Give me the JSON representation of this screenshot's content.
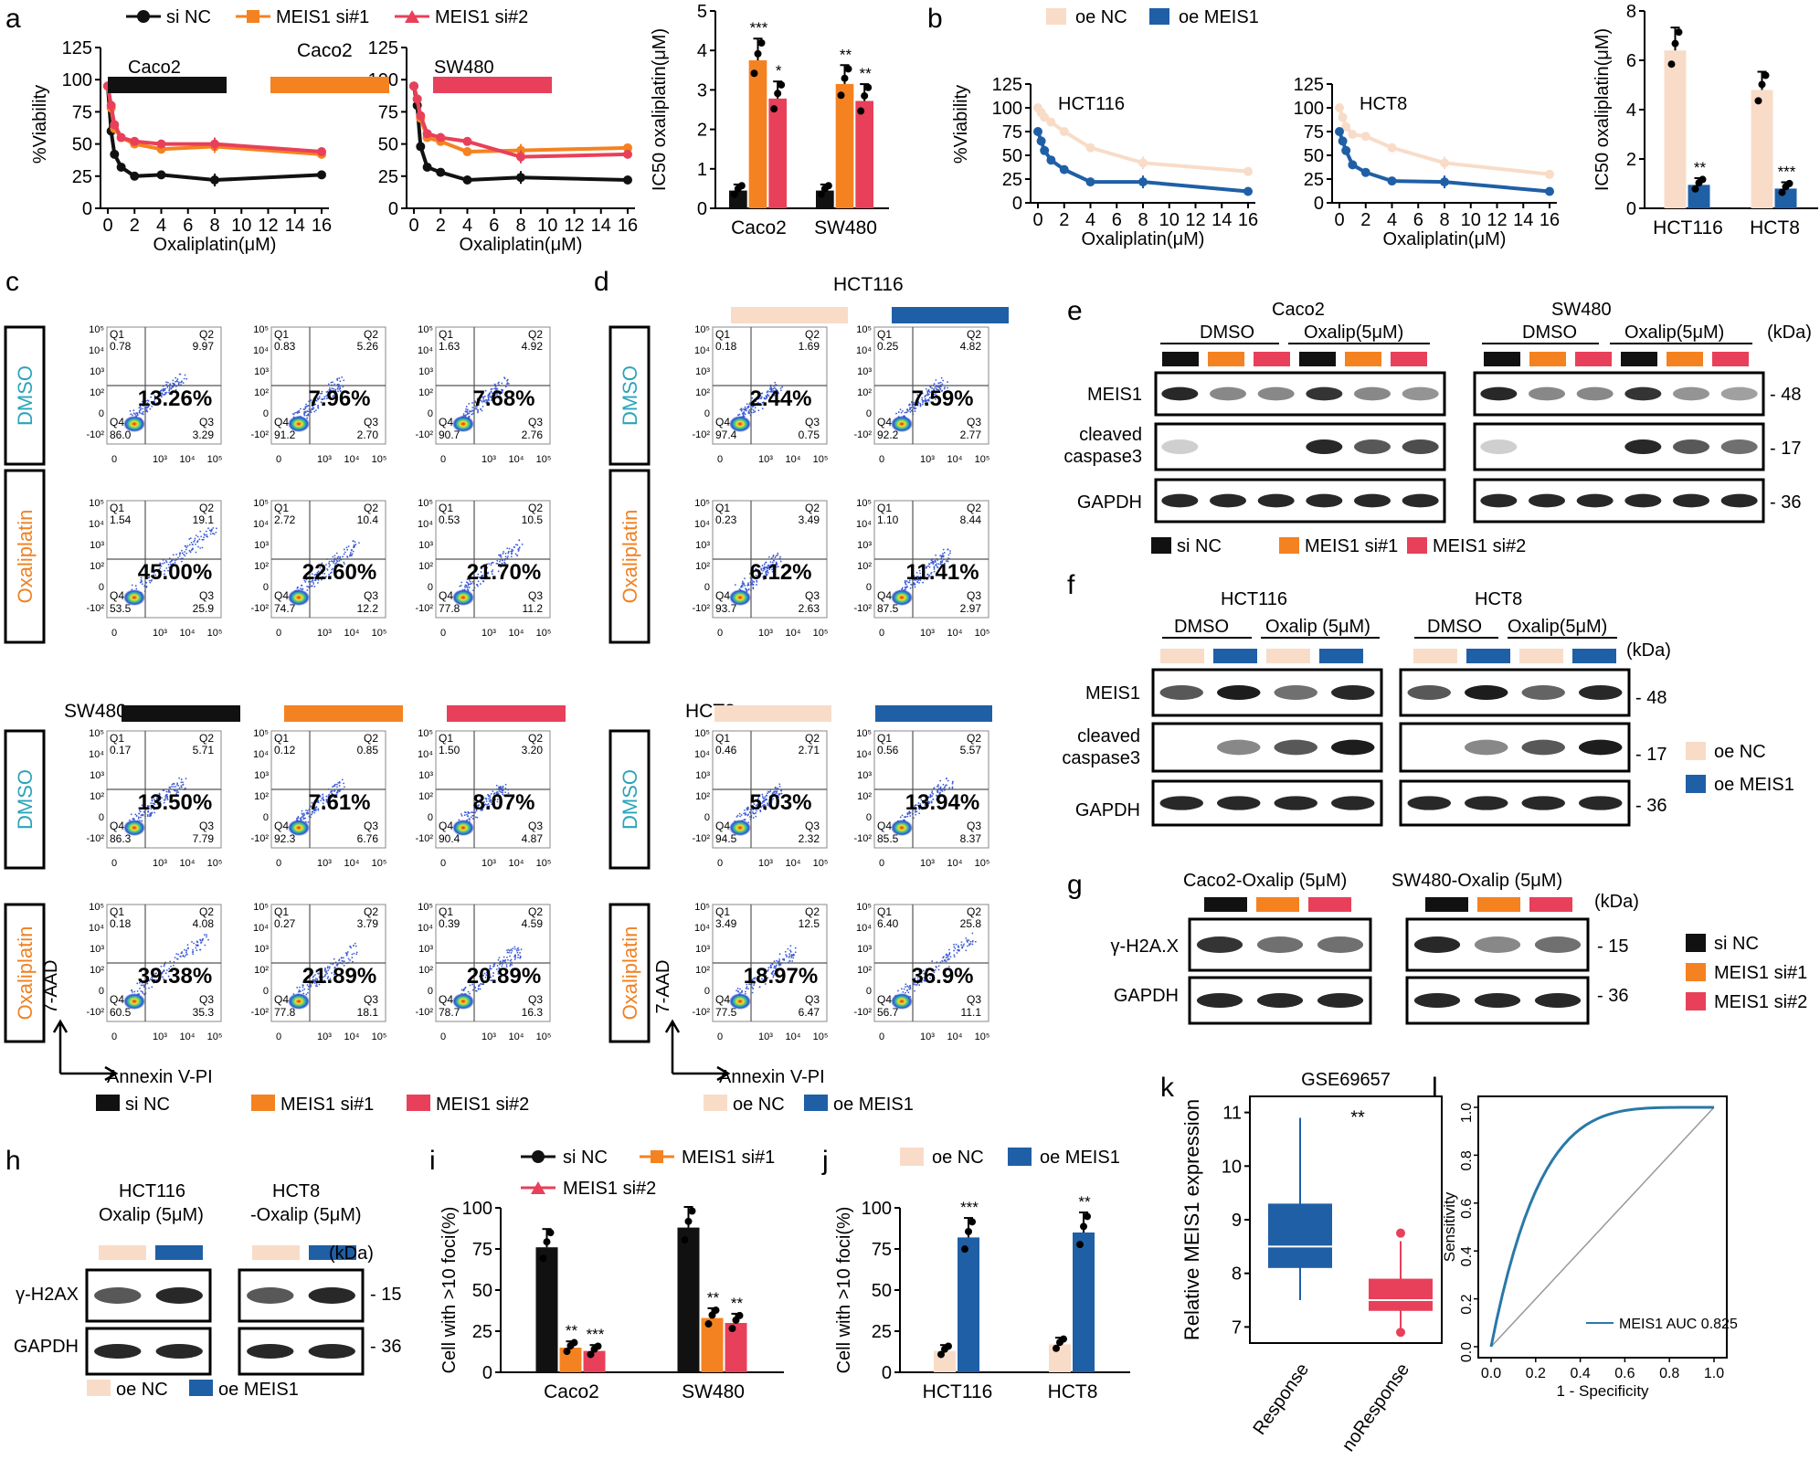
{
  "panel_letters": {
    "a": "a",
    "b": "b",
    "c": "c",
    "d": "d",
    "e": "e",
    "f": "f",
    "g": "g",
    "h": "h",
    "i": "i",
    "j": "j",
    "k": "k",
    "l": "l"
  },
  "colors": {
    "siNC": "#111111",
    "si1": "#f58220",
    "si2": "#e8405a",
    "oeNC": "#f8dcc8",
    "oeMEIS1": "#1f5fa6",
    "flowTeal": "#2aa4b8",
    "flowOrange": "#f08020"
  },
  "legends": {
    "si": [
      "si NC",
      "MEIS1 si#1",
      "MEIS1 si#2"
    ],
    "oe": [
      "oe NC",
      "oe MEIS1"
    ]
  },
  "axes": {
    "viability": "%Viability",
    "oxaliplatin": "Oxaliplatin(μM)",
    "ic50": "IC50 oxaliplatin(μM)",
    "foci": "Cell with >10 foci(%)",
    "annexin": "Annexin V-PI",
    "aad": "7-AAD",
    "relexpr": "Relative MEIS1 expression",
    "sensitivity": "Sensitivity",
    "specificity": "1 - Specificity"
  },
  "cell_lines": {
    "caco2": "Caco2",
    "sw480": "SW480",
    "hct116": "HCT116",
    "hct8": "HCT8"
  },
  "conditions": {
    "dmso": "DMSO",
    "oxaliplatin": "Oxaliplatin"
  },
  "flow": {
    "quads": [
      "Q1",
      "Q2",
      "Q3",
      "Q4"
    ],
    "c_caco2": [
      {
        "q1": "0.78",
        "q2": "9.97",
        "q3": "3.29",
        "q4": "86.0",
        "pct": "13.26%"
      },
      {
        "q1": "0.83",
        "q2": "5.26",
        "q3": "2.70",
        "q4": "91.2",
        "pct": "7.96%"
      },
      {
        "q1": "1.63",
        "q2": "4.92",
        "q3": "2.76",
        "q4": "90.7",
        "pct": "7.68%"
      },
      {
        "q1": "1.54",
        "q2": "19.1",
        "q3": "25.9",
        "q4": "53.5",
        "pct": "45.00%"
      },
      {
        "q1": "2.72",
        "q2": "10.4",
        "q3": "12.2",
        "q4": "74.7",
        "pct": "22.60%"
      },
      {
        "q1": "0.53",
        "q2": "10.5",
        "q3": "11.2",
        "q4": "77.8",
        "pct": "21.70%"
      }
    ],
    "c_sw480": [
      {
        "q1": "0.17",
        "q2": "5.71",
        "q3": "7.79",
        "q4": "86.3",
        "pct": "13.50%"
      },
      {
        "q1": "0.12",
        "q2": "0.85",
        "q3": "6.76",
        "q4": "92.3",
        "pct": "7.61%"
      },
      {
        "q1": "1.50",
        "q2": "3.20",
        "q3": "4.87",
        "q4": "90.4",
        "pct": "8.07%"
      },
      {
        "q1": "0.18",
        "q2": "4.08",
        "q3": "35.3",
        "q4": "60.5",
        "pct": "39.38%"
      },
      {
        "q1": "0.27",
        "q2": "3.79",
        "q3": "18.1",
        "q4": "77.8",
        "pct": "21.89%"
      },
      {
        "q1": "0.39",
        "q2": "4.59",
        "q3": "16.3",
        "q4": "78.7",
        "pct": "20.89%"
      }
    ],
    "d_hct116": [
      {
        "q1": "0.18",
        "q2": "1.69",
        "q3": "0.75",
        "q4": "97.4",
        "pct": "2.44%"
      },
      {
        "q1": "0.25",
        "q2": "4.82",
        "q3": "2.77",
        "q4": "92.2",
        "pct": "7.59%"
      },
      {
        "q1": "0.23",
        "q2": "3.49",
        "q3": "2.63",
        "q4": "93.7",
        "pct": "6.12%"
      },
      {
        "q1": "1.10",
        "q2": "8.44",
        "q3": "2.97",
        "q4": "87.5",
        "pct": "11.41%"
      }
    ],
    "d_hct8": [
      {
        "q1": "0.46",
        "q2": "2.71",
        "q3": "2.32",
        "q4": "94.5",
        "pct": "5.03%"
      },
      {
        "q1": "0.56",
        "q2": "5.57",
        "q3": "8.37",
        "q4": "85.5",
        "pct": "13.94%"
      },
      {
        "q1": "3.49",
        "q2": "12.5",
        "q3": "6.47",
        "q4": "77.5",
        "pct": "18.97%"
      },
      {
        "q1": "6.40",
        "q2": "25.8",
        "q3": "11.1",
        "q4": "56.7",
        "pct": "36.9%"
      }
    ],
    "xticks": [
      "0",
      "10³",
      "10⁴",
      "10⁵"
    ],
    "yticks": [
      "10⁵",
      "10⁴",
      "10³",
      "10²",
      "0",
      "-10²"
    ]
  },
  "blots": {
    "e_caco2": "Caco2",
    "e_sw480": "SW480",
    "e_dmso": "DMSO",
    "e_oxalip": "Oxalip(5μM)",
    "f_oxalip1": "Oxalip (5μM)",
    "f_oxalip2": "Oxalip(5μM)",
    "kda": "(kDa)",
    "meis1": "MEIS1",
    "cleaved1": "cleaved",
    "cleaved2": "caspase3",
    "gapdh": "GAPDH",
    "h2ax_g": "γ-H2A.X",
    "h2ax_h": "γ-H2AX",
    "g_caco2": "Caco2-Oxalip (5μM)",
    "g_sw480": "SW480-Oxalip (5μM)",
    "h_hct116a": "HCT116",
    "h_hct116b": "Oxalip (5μM)",
    "h_hct8a": "HCT8",
    "h_hct8b": "-Oxalip (5μM)",
    "mw48": "48",
    "mw17": "17",
    "mw36": "36",
    "mw15": "15"
  },
  "chart_data": [
    {
      "type": "line",
      "title": "Caco2",
      "x": [
        0,
        0.25,
        0.5,
        1,
        2,
        4,
        8,
        16
      ],
      "series": [
        {
          "name": "si NC",
          "values": [
            95,
            60,
            42,
            32,
            25,
            26,
            22,
            26
          ]
        },
        {
          "name": "MEIS1 si#1",
          "values": [
            95,
            78,
            62,
            55,
            50,
            46,
            48,
            42
          ]
        },
        {
          "name": "MEIS1 si#2",
          "values": [
            95,
            80,
            65,
            55,
            52,
            50,
            50,
            44
          ]
        }
      ],
      "xlabel": "Oxaliplatin(μM)",
      "ylabel": "%Viability",
      "ylim": [
        0,
        125
      ]
    },
    {
      "type": "line",
      "title": "SW480",
      "x": [
        0,
        0.25,
        0.5,
        1,
        2,
        4,
        8,
        16
      ],
      "series": [
        {
          "name": "si NC",
          "values": [
            95,
            80,
            48,
            32,
            28,
            22,
            24,
            22
          ]
        },
        {
          "name": "MEIS1 si#1",
          "values": [
            95,
            85,
            70,
            55,
            52,
            44,
            45,
            47
          ]
        },
        {
          "name": "MEIS1 si#2",
          "values": [
            95,
            85,
            72,
            58,
            55,
            52,
            40,
            42
          ]
        }
      ],
      "xlabel": "Oxaliplatin(μM)",
      "ylabel": "%Viability",
      "ylim": [
        0,
        125
      ]
    },
    {
      "type": "bar",
      "categories": [
        "Caco2",
        "SW480"
      ],
      "series": [
        {
          "name": "si NC",
          "values": [
            0.45,
            0.45
          ]
        },
        {
          "name": "MEIS1 si#1",
          "values": [
            3.75,
            3.15
          ]
        },
        {
          "name": "MEIS1 si#2",
          "values": [
            2.78,
            2.72
          ]
        }
      ],
      "sig": [
        [
          "",
          "***",
          "*"
        ],
        [
          "",
          "**",
          "**"
        ]
      ],
      "ylabel": "IC50 oxaliplatin(μM)",
      "ylim": [
        0,
        5
      ]
    },
    {
      "type": "line",
      "title": "HCT116",
      "x": [
        0,
        0.25,
        0.5,
        1,
        2,
        4,
        8,
        16
      ],
      "series": [
        {
          "name": "oe NC",
          "values": [
            100,
            95,
            90,
            85,
            75,
            58,
            42,
            33
          ]
        },
        {
          "name": "oe MEIS1",
          "values": [
            75,
            65,
            55,
            45,
            35,
            22,
            22,
            12
          ]
        }
      ],
      "xlabel": "Oxaliplatin(μM)",
      "ylabel": "%Viability",
      "ylim": [
        0,
        125
      ]
    },
    {
      "type": "line",
      "title": "HCT8",
      "x": [
        0,
        0.25,
        0.5,
        1,
        2,
        4,
        8,
        16
      ],
      "series": [
        {
          "name": "oe NC",
          "values": [
            100,
            90,
            80,
            72,
            70,
            58,
            42,
            30
          ]
        },
        {
          "name": "oe MEIS1",
          "values": [
            75,
            65,
            55,
            40,
            32,
            23,
            22,
            12
          ]
        }
      ],
      "xlabel": "Oxaliplatin(μM)",
      "ylabel": "%Viability",
      "ylim": [
        0,
        125
      ]
    },
    {
      "type": "bar",
      "categories": [
        "HCT116",
        "HCT8"
      ],
      "series": [
        {
          "name": "oe NC",
          "values": [
            6.4,
            4.8
          ]
        },
        {
          "name": "oe MEIS1",
          "values": [
            0.95,
            0.8
          ]
        }
      ],
      "sig": [
        [
          "",
          "**"
        ],
        [
          "",
          "***"
        ]
      ],
      "ylabel": "IC50 oxaliplatin(μM)",
      "ylim": [
        0,
        8
      ]
    },
    {
      "type": "bar",
      "categories": [
        "Caco2",
        "SW480"
      ],
      "series": [
        {
          "name": "si NC",
          "values": [
            76,
            88
          ]
        },
        {
          "name": "MEIS1 si#1",
          "values": [
            15,
            33
          ]
        },
        {
          "name": "MEIS1 si#2",
          "values": [
            13,
            30
          ]
        }
      ],
      "sig": [
        [
          "",
          "**",
          "***"
        ],
        [
          "",
          "**",
          "**"
        ]
      ],
      "ylabel": "Cell with >10 foci(%)",
      "ylim": [
        0,
        100
      ]
    },
    {
      "type": "bar",
      "categories": [
        "HCT116",
        "HCT8"
      ],
      "series": [
        {
          "name": "oe NC",
          "values": [
            13,
            17
          ]
        },
        {
          "name": "oe MEIS1",
          "values": [
            82,
            85
          ]
        }
      ],
      "sig": [
        [
          "",
          "***"
        ],
        [
          "",
          "**"
        ]
      ],
      "ylabel": "Cell with >10 foci(%)",
      "ylim": [
        0,
        100
      ]
    },
    {
      "type": "box",
      "title": "GSE69657",
      "categories": [
        "Response",
        "noResponse"
      ],
      "boxes": [
        {
          "min": 7.5,
          "q1": 8.1,
          "median": 8.5,
          "q3": 9.3,
          "max": 10.9
        },
        {
          "min": 6.9,
          "q1": 7.3,
          "median": 7.5,
          "q3": 7.9,
          "max": 8.6,
          "outliers": [
            6.9,
            8.75
          ]
        }
      ],
      "sig": "**",
      "ylabel": "Relative MEIS1 expression",
      "ylim": [
        6.7,
        11.3
      ]
    },
    {
      "type": "line",
      "title": "",
      "x": [
        0,
        0.2,
        0.4,
        0.6,
        0.8,
        1.0
      ],
      "series": [
        {
          "name": "MEIS1 AUC 0.825",
          "values": [
            0,
            0.72,
            0.86,
            0.93,
            0.97,
            1.0
          ]
        }
      ],
      "xlabel": "1 - Specificity",
      "ylabel": "Sensitivity",
      "ylim": [
        0,
        1
      ]
    }
  ]
}
